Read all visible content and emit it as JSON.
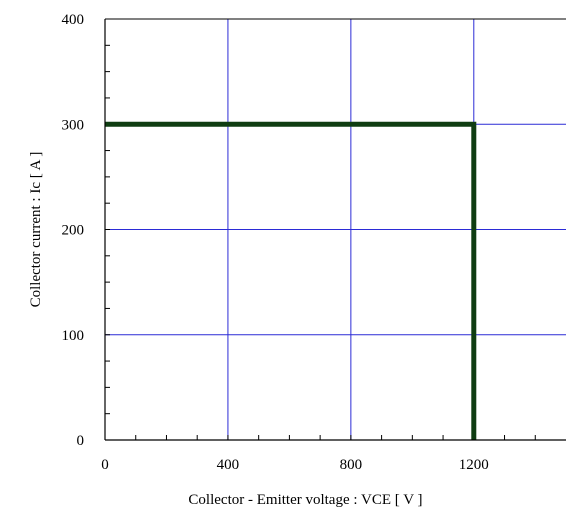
{
  "chart_data": {
    "type": "line",
    "title": "",
    "xlabel": "Collector - Emitter voltage  :  VCE  [ V ]",
    "ylabel": "Collector current  : Ic  [ A ]",
    "xlim": [
      0,
      1500
    ],
    "ylim": [
      0,
      400
    ],
    "x_ticks": [
      0,
      400,
      800,
      1200
    ],
    "x_tick_labels": [
      "0",
      "400",
      "800",
      "1200"
    ],
    "y_ticks": [
      0,
      100,
      200,
      300,
      400
    ],
    "y_tick_labels": [
      "0",
      "100",
      "200",
      "300",
      "400"
    ],
    "x_minor_step": 100,
    "y_minor_step": 25,
    "grid": true,
    "grid_color": "#2b2bd6",
    "series": [
      {
        "color": "#0f3d12",
        "x": [
          0,
          1200,
          1200
        ],
        "y": [
          300,
          300,
          0
        ]
      }
    ]
  }
}
